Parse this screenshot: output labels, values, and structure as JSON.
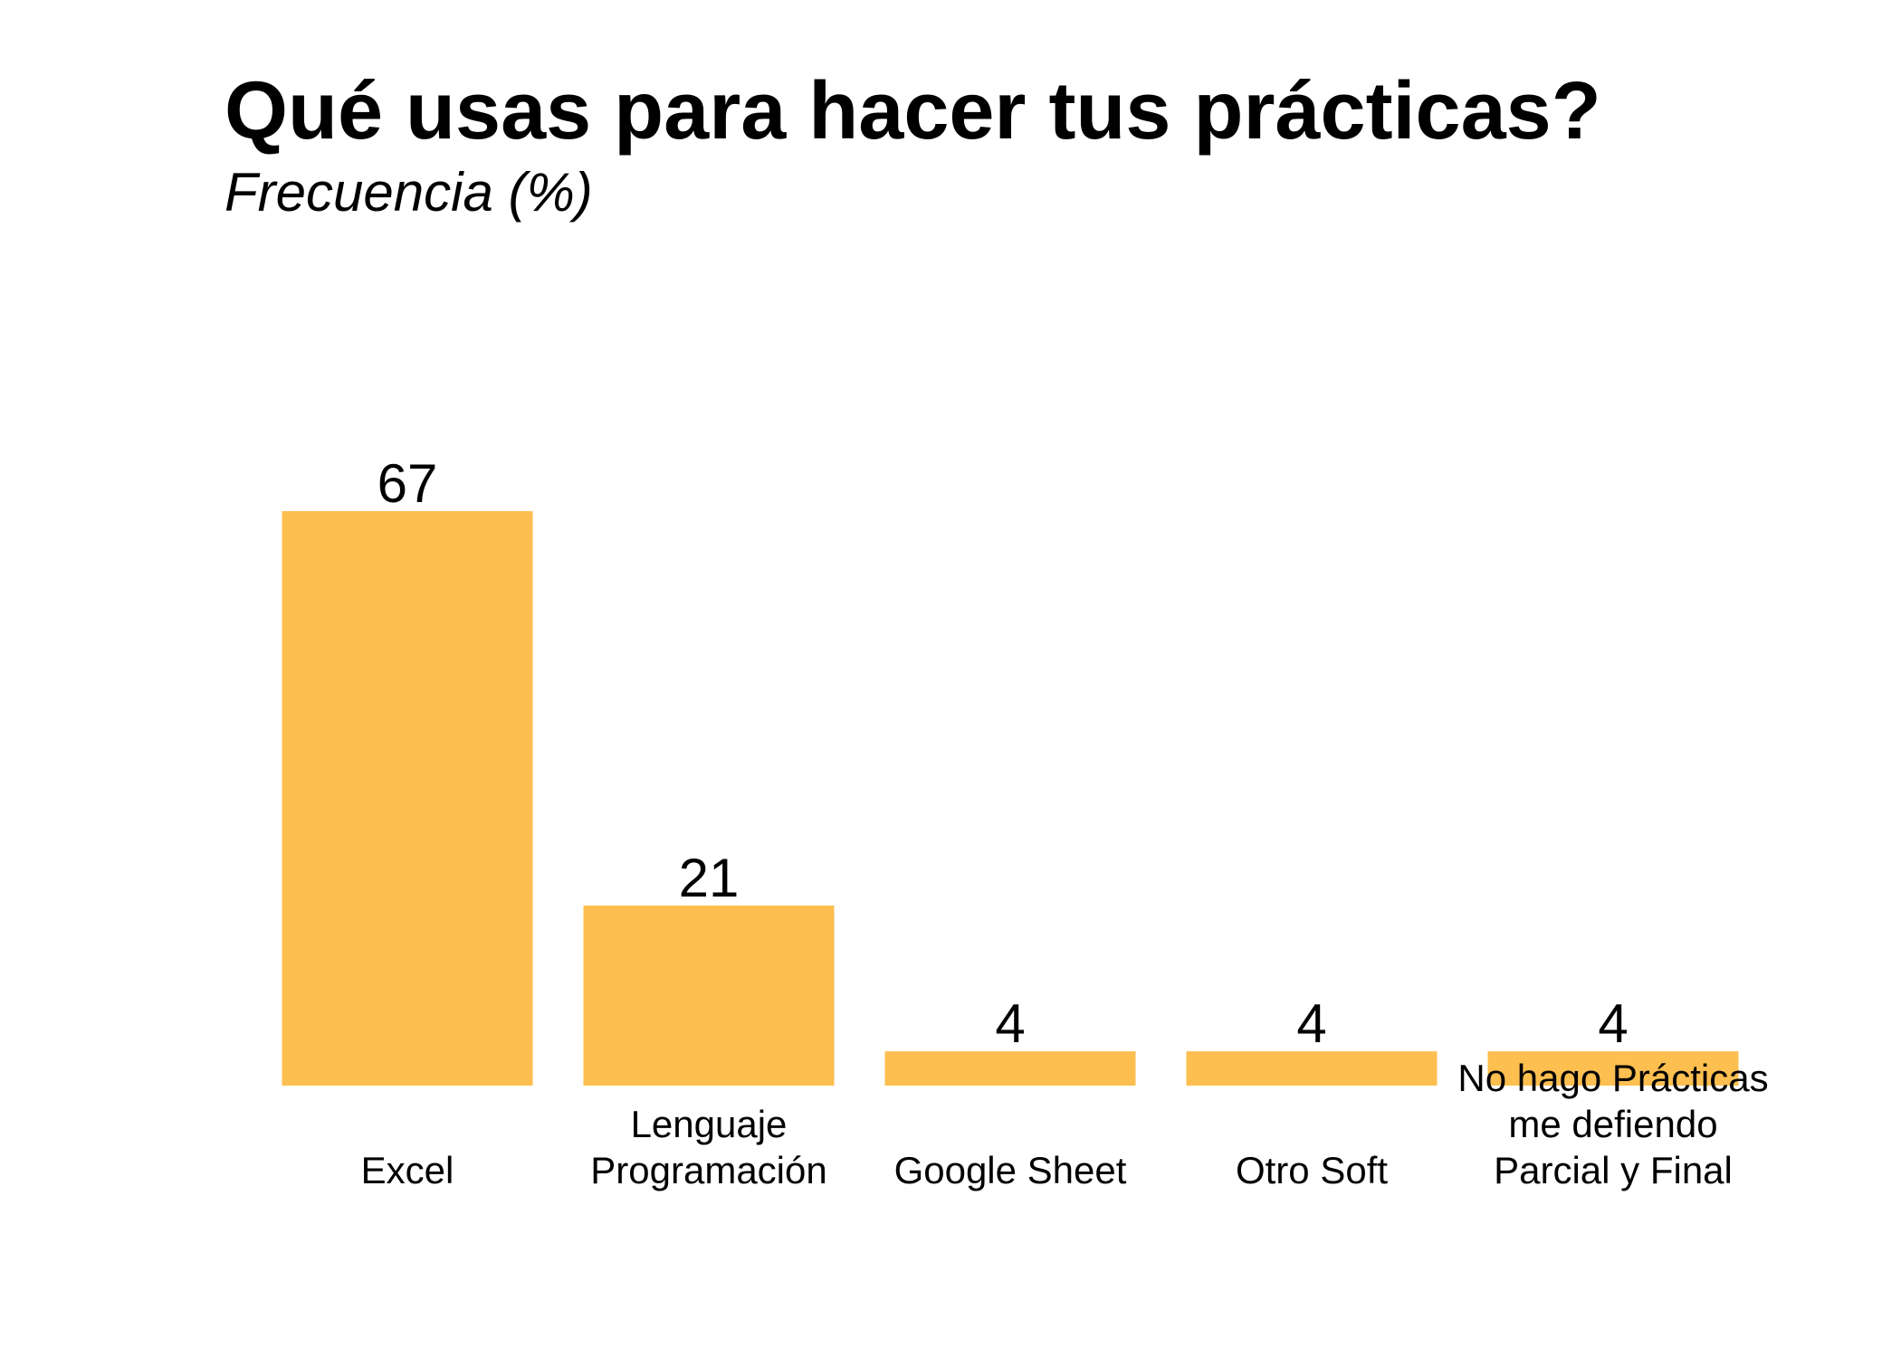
{
  "chart_data": {
    "type": "bar",
    "title": "Qué usas para hacer tus prácticas?",
    "subtitle": "Frecuencia (%)",
    "categories": [
      "Excel",
      "Lenguaje\nProgramación",
      "Google Sheet",
      "Otro Soft",
      "No hago Prácticas\nme defiendo\nParcial y Final"
    ],
    "values": [
      67,
      21,
      4,
      4,
      4
    ],
    "data_labels": [
      "67",
      "21",
      "4",
      "4",
      "4"
    ],
    "ylim": [
      0,
      67
    ],
    "grid": false,
    "bar_color": "#FDBF50",
    "text_color": "#000000",
    "background": "#FFFFFF"
  }
}
